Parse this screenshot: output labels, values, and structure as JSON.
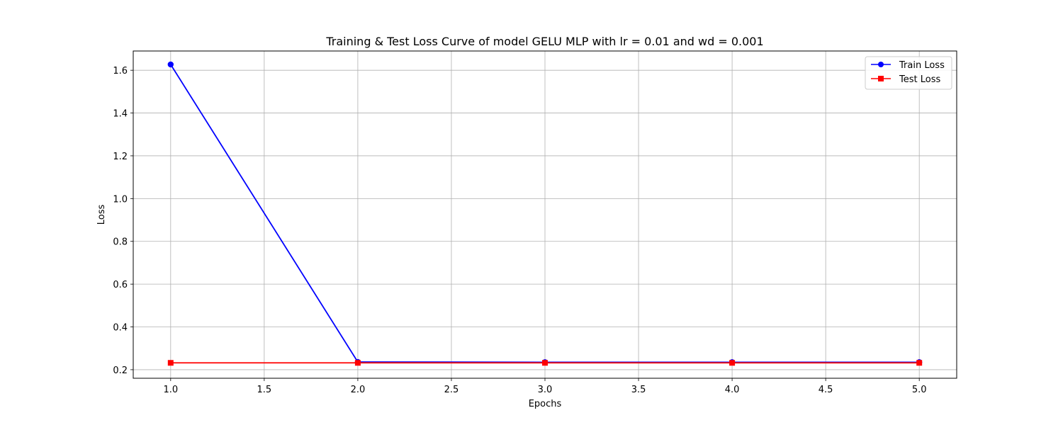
{
  "chart_data": {
    "type": "line",
    "title": "Training & Test Loss Curve of model GELU MLP with lr = 0.01 and wd = 0.001",
    "xlabel": "Epochs",
    "ylabel": "Loss",
    "x": [
      1,
      2,
      3,
      4,
      5
    ],
    "xlim": [
      0.8,
      5.2
    ],
    "ylim": [
      0.16,
      1.69
    ],
    "xticks": [
      "1.0",
      "1.5",
      "2.0",
      "2.5",
      "3.0",
      "3.5",
      "4.0",
      "4.5",
      "5.0"
    ],
    "yticks": [
      "0.2",
      "0.4",
      "0.6",
      "0.8",
      "1.0",
      "1.2",
      "1.4",
      "1.6"
    ],
    "grid": true,
    "legend_position": "top-right",
    "series": [
      {
        "name": "Train Loss",
        "values": [
          1.627,
          0.236,
          0.235,
          0.235,
          0.235
        ],
        "color": "#0000ff",
        "marker": "circle"
      },
      {
        "name": "Test Loss",
        "values": [
          0.232,
          0.232,
          0.232,
          0.232,
          0.232
        ],
        "color": "#ff0000",
        "marker": "square"
      }
    ]
  }
}
